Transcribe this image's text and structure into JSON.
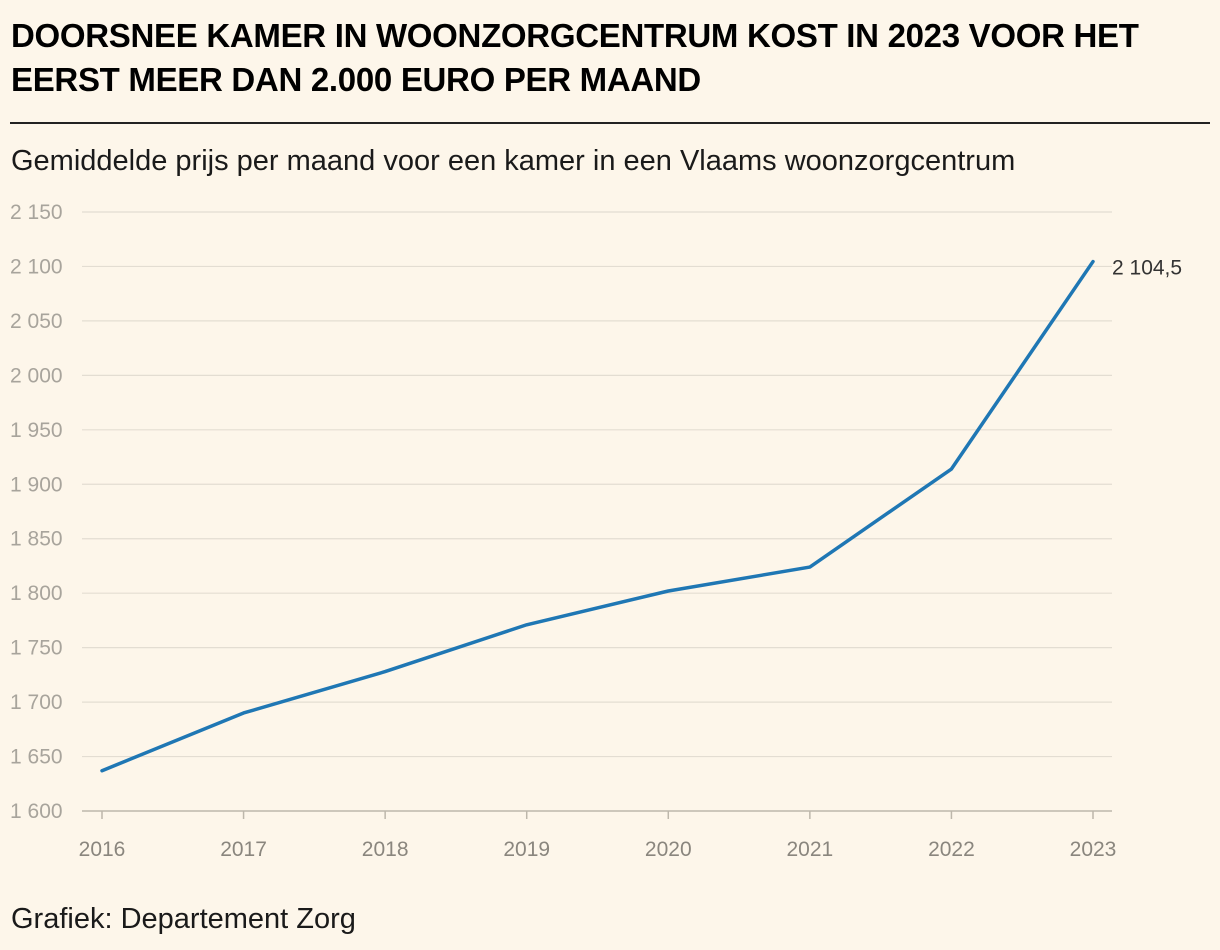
{
  "header": {
    "title": "DOORSNEE KAMER IN WOONZORGCENTRUM KOST IN 2023 VOOR HET EERST MEER DAN 2.000 EURO PER MAAND",
    "subtitle": "Gemiddelde prijs per maand voor een kamer in een Vlaams woonzorgcentrum"
  },
  "footer": {
    "source": "Grafiek: Departement Zorg"
  },
  "colors": {
    "line": "#1f77b4",
    "grid": "#e3ddd2",
    "background": "#fdf6ea"
  },
  "chart_data": {
    "type": "line",
    "x": [
      "2016",
      "2017",
      "2018",
      "2019",
      "2020",
      "2021",
      "2022",
      "2023"
    ],
    "series": [
      {
        "values": [
          1637,
          1690,
          1728,
          1771,
          1802,
          1824,
          1914,
          2104.5
        ]
      }
    ],
    "ylim": [
      1600,
      2150
    ],
    "yticks": [
      1600,
      1650,
      1700,
      1750,
      1800,
      1850,
      1900,
      1950,
      2000,
      2050,
      2100,
      2150
    ],
    "ytick_labels": [
      "1 600",
      "1 650",
      "1 700",
      "1 750",
      "1 800",
      "1 850",
      "1 900",
      "1 950",
      "2 000",
      "2 050",
      "2 100",
      "2 150"
    ],
    "end_label": "2 104,5",
    "grid": true,
    "xlabel": "",
    "ylabel": ""
  }
}
